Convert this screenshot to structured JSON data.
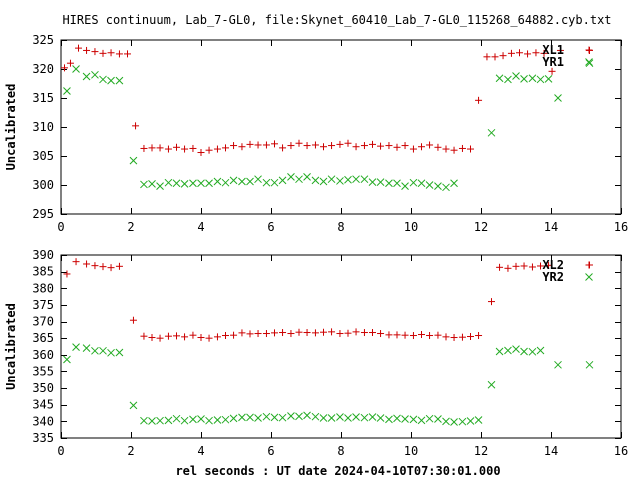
{
  "title": "HIRES continuum, Lab_7-GL0, file:Skynet_60410_Lab_7-GL0_115268_64882.cyb.txt",
  "colors": {
    "red": "#cc0000",
    "green": "#22aa22",
    "axis": "#000000"
  },
  "chart_data": [
    {
      "type": "scatter",
      "title": "HIRES continuum, Lab_7-GL0, file:Skynet_60410_Lab_7-GL0_115268_64882.cyb.txt",
      "xlabel": "",
      "ylabel": "Uncalibrated",
      "xlim": [
        0,
        16
      ],
      "ylim": [
        295,
        325
      ],
      "xticks": [
        0,
        2,
        4,
        6,
        8,
        10,
        12,
        14,
        16
      ],
      "yticks": [
        295,
        300,
        305,
        310,
        315,
        320,
        325
      ],
      "grid": false,
      "legend_position": "top-right",
      "series": [
        {
          "name": "XL1",
          "marker": "plus",
          "color": "#cc0000",
          "x": [
            0.1,
            0.27,
            0.5,
            0.73,
            0.97,
            1.2,
            1.43,
            1.67,
            1.9,
            2.13,
            2.37,
            2.6,
            2.83,
            3.07,
            3.3,
            3.53,
            3.77,
            4.0,
            4.23,
            4.47,
            4.7,
            4.93,
            5.17,
            5.4,
            5.63,
            5.87,
            6.1,
            6.33,
            6.57,
            6.8,
            7.03,
            7.27,
            7.5,
            7.73,
            7.97,
            8.2,
            8.43,
            8.67,
            8.9,
            9.13,
            9.37,
            9.6,
            9.83,
            10.07,
            10.3,
            10.53,
            10.77,
            11.0,
            11.23,
            11.47,
            11.7,
            11.93,
            12.17,
            12.4,
            12.63,
            12.87,
            13.1,
            13.33,
            13.57,
            13.8,
            14.03,
            14.27,
            15.1
          ],
          "y": [
            320.2,
            321,
            323.6,
            323.2,
            323,
            322.7,
            322.8,
            322.6,
            322.6,
            310.2,
            306.3,
            306.4,
            306.4,
            306.2,
            306.5,
            306.2,
            306.3,
            305.6,
            306.0,
            306.2,
            306.4,
            306.8,
            306.6,
            307.0,
            306.9,
            306.9,
            307.1,
            306.4,
            306.8,
            307.2,
            306.8,
            306.9,
            306.6,
            306.8,
            307.0,
            307.2,
            306.6,
            306.8,
            307.0,
            306.7,
            306.8,
            306.5,
            306.8,
            306.2,
            306.6,
            306.9,
            306.5,
            306.2,
            306.0,
            306.3,
            306.2,
            314.6,
            322.1,
            322.1,
            322.3,
            322.7,
            322.8,
            322.6,
            322.8,
            322.7,
            319.6,
            323.2,
            323.2
          ],
          "xs": [
            0.1,
            0.27,
            0.5,
            0.73,
            0.97,
            1.2,
            1.43,
            1.67,
            1.9,
            2.13,
            2.37,
            2.6,
            2.83,
            3.07,
            3.3,
            3.53,
            3.77,
            4.0,
            4.23,
            4.47,
            4.7,
            4.93,
            5.17,
            5.4,
            5.63,
            5.87,
            6.1,
            6.33,
            6.57,
            6.8,
            7.03,
            7.27,
            7.5,
            7.73,
            7.97,
            8.2,
            8.43,
            8.67,
            8.9,
            9.13,
            9.37,
            9.6,
            9.83,
            10.07,
            10.3,
            10.53,
            10.77,
            11.0,
            11.23,
            11.47,
            11.7,
            11.93,
            12.17,
            12.4,
            12.63,
            12.87,
            13.1,
            13.33,
            13.57,
            13.8,
            14.03,
            14.27,
            15.1
          ]
        },
        {
          "name": "YR1",
          "marker": "cross",
          "color": "#22aa22",
          "y": [
            316.2,
            320.0,
            318.7,
            319.0,
            318.2,
            318.0,
            318.0,
            304.2,
            300.1,
            300.2,
            299.8,
            300.4,
            300.3,
            300.2,
            300.3,
            300.3,
            300.3,
            300.6,
            300.4,
            300.8,
            300.6,
            300.6,
            301.0,
            300.4,
            300.4,
            300.8,
            301.4,
            301.0,
            301.4,
            300.8,
            300.6,
            301.0,
            300.7,
            300.9,
            301.0,
            301.0,
            300.5,
            300.5,
            300.3,
            300.3,
            299.8,
            300.4,
            300.3,
            300.0,
            299.8,
            299.6,
            300.3,
            309.0,
            318.4,
            318.2,
            318.8,
            318.3,
            318.4,
            318.2,
            318.3,
            315.0,
            321.0
          ],
          "x": [
            0.17,
            0.43,
            0.73,
            0.97,
            1.2,
            1.43,
            1.67,
            2.07,
            2.37,
            2.6,
            2.83,
            3.07,
            3.3,
            3.53,
            3.77,
            4.0,
            4.23,
            4.47,
            4.7,
            4.93,
            5.17,
            5.4,
            5.63,
            5.87,
            6.1,
            6.33,
            6.57,
            6.8,
            7.03,
            7.27,
            7.5,
            7.73,
            7.97,
            8.2,
            8.43,
            8.67,
            8.9,
            9.13,
            9.37,
            9.6,
            9.83,
            10.07,
            10.3,
            10.53,
            10.77,
            11.0,
            11.23,
            12.3,
            12.53,
            12.77,
            13.0,
            13.23,
            13.47,
            13.7,
            13.93,
            14.2,
            15.1
          ]
        }
      ]
    },
    {
      "type": "scatter",
      "title": "",
      "xlabel": "rel seconds : UT date 2024-04-10T07:30:01.000",
      "ylabel": "Uncalibrated",
      "xlim": [
        0,
        16
      ],
      "ylim": [
        335,
        390
      ],
      "xticks": [
        0,
        2,
        4,
        6,
        8,
        10,
        12,
        14,
        16
      ],
      "yticks": [
        335,
        340,
        345,
        350,
        355,
        360,
        365,
        370,
        375,
        380,
        385,
        390
      ],
      "grid": false,
      "legend_position": "top-right",
      "series": [
        {
          "name": "XL2",
          "marker": "plus",
          "color": "#cc0000",
          "x": [
            0.17,
            0.43,
            0.73,
            0.97,
            1.2,
            1.43,
            1.67,
            2.07,
            2.37,
            2.6,
            2.83,
            3.07,
            3.3,
            3.53,
            3.77,
            4.0,
            4.23,
            4.47,
            4.7,
            4.93,
            5.17,
            5.4,
            5.63,
            5.87,
            6.1,
            6.33,
            6.57,
            6.8,
            7.03,
            7.27,
            7.5,
            7.73,
            7.97,
            8.2,
            8.43,
            8.67,
            8.9,
            9.13,
            9.37,
            9.6,
            9.83,
            10.07,
            10.3,
            10.53,
            10.77,
            11.0,
            11.23,
            11.47,
            11.7,
            11.93,
            12.3,
            12.53,
            12.77,
            13.0,
            13.23,
            13.47,
            13.7,
            13.93,
            15.1
          ],
          "y": [
            384.3,
            388.0,
            387.3,
            386.8,
            386.5,
            386.2,
            386.6,
            370.4,
            365.6,
            365.2,
            365.0,
            365.6,
            365.7,
            365.4,
            365.9,
            365.2,
            365.0,
            365.4,
            365.8,
            365.9,
            366.6,
            366.3,
            366.4,
            366.4,
            366.6,
            366.7,
            366.4,
            366.8,
            366.7,
            366.6,
            366.8,
            366.9,
            366.4,
            366.5,
            366.9,
            366.7,
            366.7,
            366.4,
            366.0,
            366.0,
            365.9,
            365.8,
            366.1,
            365.8,
            365.9,
            365.4,
            365.2,
            365.3,
            365.5,
            365.8,
            376.0,
            386.3,
            386.0,
            386.6,
            386.7,
            386.4,
            386.7,
            386.9,
            387.0
          ]
        },
        {
          "name": "YR2",
          "marker": "cross",
          "color": "#22aa22",
          "x": [
            0.17,
            0.43,
            0.73,
            0.97,
            1.2,
            1.43,
            1.67,
            2.07,
            2.37,
            2.6,
            2.83,
            3.07,
            3.3,
            3.53,
            3.77,
            4.0,
            4.23,
            4.47,
            4.7,
            4.93,
            5.17,
            5.4,
            5.63,
            5.87,
            6.1,
            6.33,
            6.57,
            6.8,
            7.03,
            7.27,
            7.5,
            7.73,
            7.97,
            8.2,
            8.43,
            8.67,
            8.9,
            9.13,
            9.37,
            9.6,
            9.83,
            10.07,
            10.3,
            10.53,
            10.77,
            11.0,
            11.23,
            11.47,
            11.7,
            11.93,
            12.3,
            12.53,
            12.77,
            13.0,
            13.23,
            13.47,
            13.7,
            14.2,
            15.1
          ],
          "y": [
            358.6,
            362.3,
            362.0,
            361.2,
            361.2,
            360.6,
            360.7,
            344.8,
            340.2,
            340.1,
            340.2,
            340.3,
            340.8,
            340.2,
            340.6,
            340.7,
            340.2,
            340.4,
            340.5,
            340.9,
            341.2,
            341.2,
            341.0,
            341.4,
            341.2,
            341.1,
            341.6,
            341.5,
            341.8,
            341.4,
            341.0,
            341.0,
            341.3,
            341.0,
            341.3,
            341.1,
            341.3,
            341.0,
            340.6,
            340.9,
            340.7,
            340.6,
            340.3,
            340.8,
            340.7,
            340.0,
            339.8,
            339.9,
            340.1,
            340.4,
            351.0,
            361.0,
            361.3,
            361.7,
            361.0,
            360.9,
            361.3,
            357.0,
            357.0
          ]
        }
      ]
    }
  ]
}
